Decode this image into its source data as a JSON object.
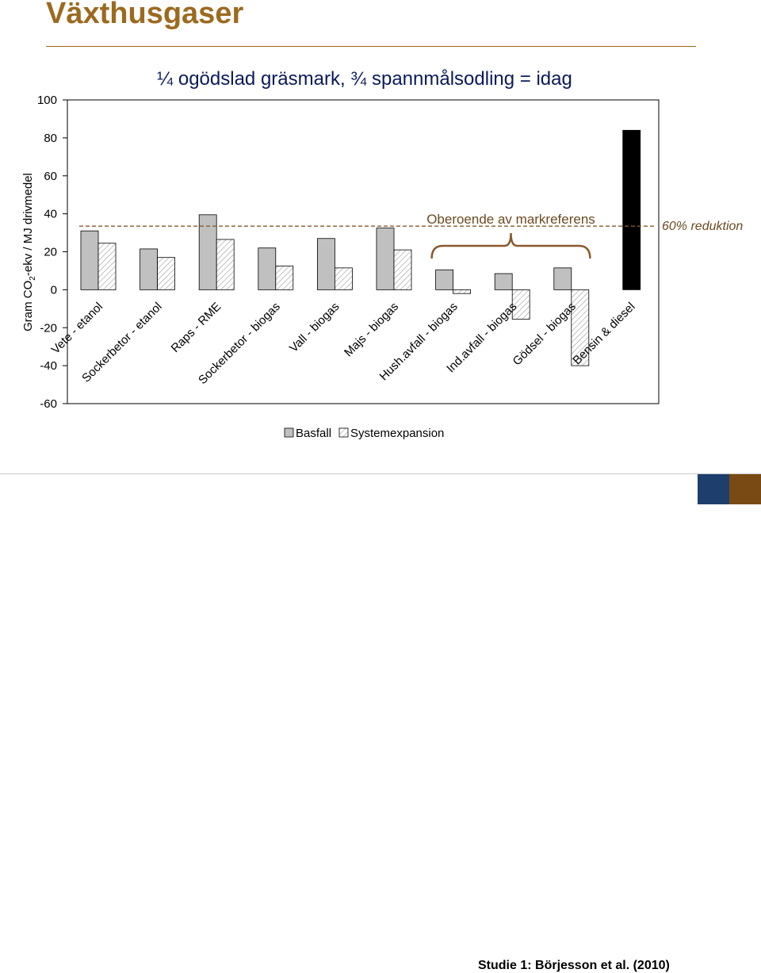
{
  "slide": {
    "title": "Växthusgaser",
    "footer": "Studie 1: Börjesson et al. (2010)"
  },
  "colors": {
    "title": "#9c6a1f",
    "basfall": "#c0c0c0",
    "reference": "#000000",
    "annotation": "#8a5a2b",
    "footer_square_1": "#1e3f6e",
    "footer_square_2": "#7a4a14"
  },
  "chart_data": {
    "type": "bar",
    "title": "¼ ogödslad gräsmark, ¾ spannmålsodling = idag",
    "ylabel_main": "Gram CO",
    "ylabel_sub": "2",
    "ylabel_rest": "-ekv / MJ drivmedel",
    "ylim": [
      -60,
      100
    ],
    "yticks": [
      -60,
      -40,
      -20,
      0,
      20,
      40,
      60,
      80,
      100
    ],
    "categories": [
      "Vete - etanol",
      "Sockerbetor - etanol",
      "Raps - RME",
      "Sockerbetor - biogas",
      "Vall - biogas",
      "Majs - biogas",
      "Hush.avfall - biogas",
      "Ind.avfall - biogas",
      "Gödsel - biogas",
      "Bensin & diesel"
    ],
    "series": [
      {
        "name": "Basfall",
        "values": [
          31,
          21.5,
          39.5,
          22,
          27,
          32.5,
          10.5,
          8.5,
          11.5,
          84
        ]
      },
      {
        "name": "Systemexpansion",
        "values": [
          24.5,
          17,
          26.5,
          12.5,
          11.5,
          21,
          -2,
          -15.5,
          -40,
          null
        ]
      }
    ],
    "reference_line": {
      "value": 33.5,
      "label": "60% reduktion"
    },
    "annotation": {
      "text": "Oberoende av markreferens",
      "categories": [
        "Hush.avfall - biogas",
        "Ind.avfall - biogas",
        "Gödsel - biogas"
      ]
    },
    "legend": {
      "position": "bottom-center",
      "entries": [
        "Basfall",
        "Systemexpansion"
      ]
    },
    "grid": false
  }
}
